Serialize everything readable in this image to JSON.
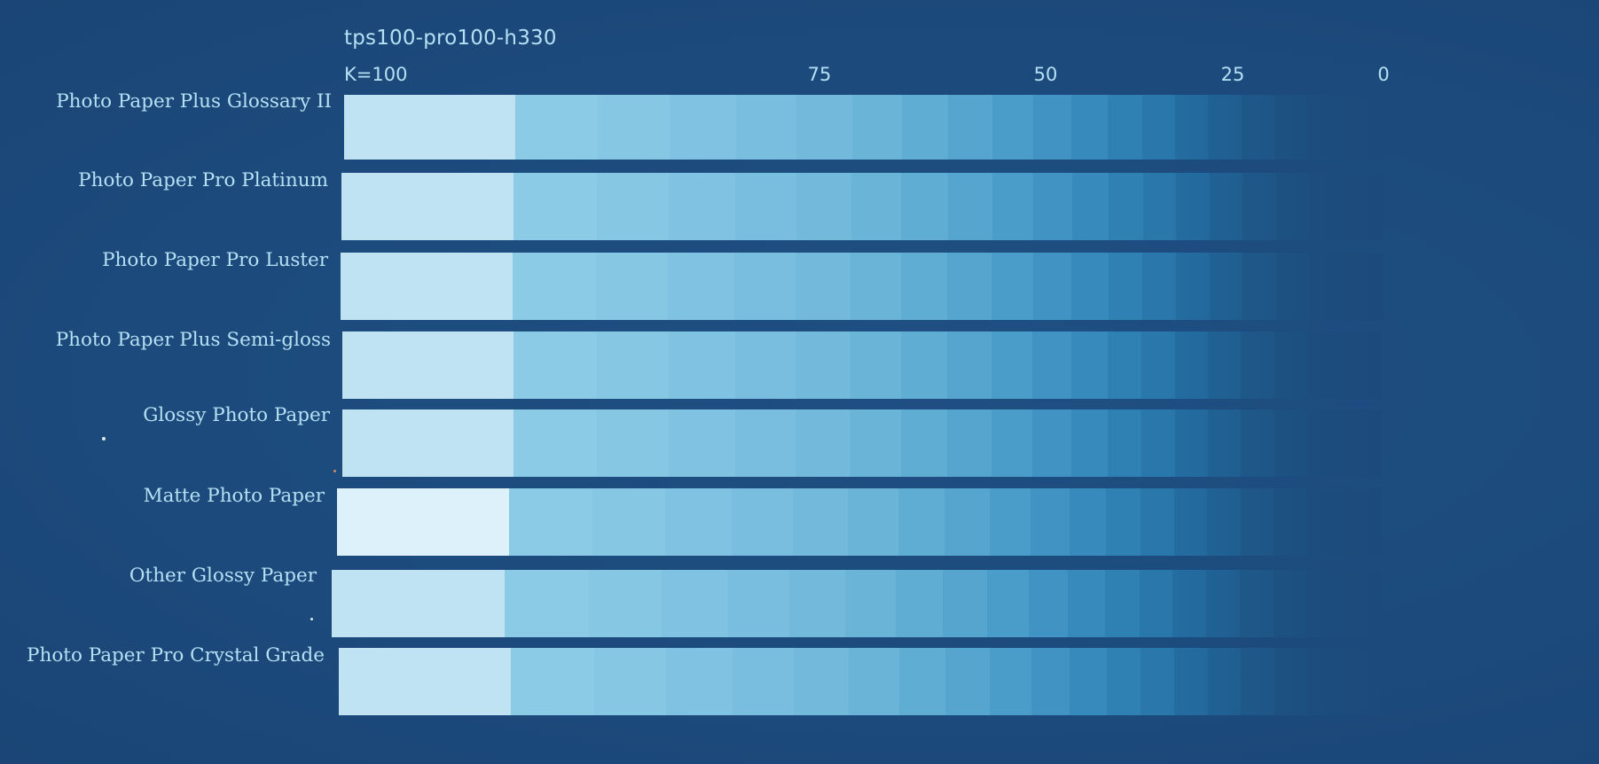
{
  "sheet": {
    "profile_title": "tps100-pro100-h330",
    "k_label": "K=100",
    "ticks": [
      "75",
      "50",
      "25",
      "0"
    ]
  },
  "strips": [
    {
      "label": "Photo Paper Plus Glossary II"
    },
    {
      "label": "Photo Paper Pro Platinum"
    },
    {
      "label": "Photo Paper Pro Luster"
    },
    {
      "label": "Photo Paper Plus Semi-gloss"
    },
    {
      "label": "Glossy Photo Paper"
    },
    {
      "label": "Matte Photo Paper"
    },
    {
      "label": "Other Glossy Paper"
    },
    {
      "label": "Photo Paper Pro Crystal Grade"
    }
  ],
  "colors": {
    "background": "#1c4a7c",
    "label_text": "#b4e0f4",
    "patches": [
      "#bfe3f3",
      "#8ccbe6",
      "#86c7e4",
      "#7fc2e1",
      "#79bede",
      "#72b9db",
      "#6ab4d8",
      "#60add4",
      "#55a5cf",
      "#4a9cc9",
      "#4093c3",
      "#378abc",
      "#2f81b4",
      "#2977ab",
      "#246ea2",
      "#216698",
      "#1f5e8e",
      "#1d5786",
      "#1c5180",
      "#1c4d7c"
    ]
  }
}
